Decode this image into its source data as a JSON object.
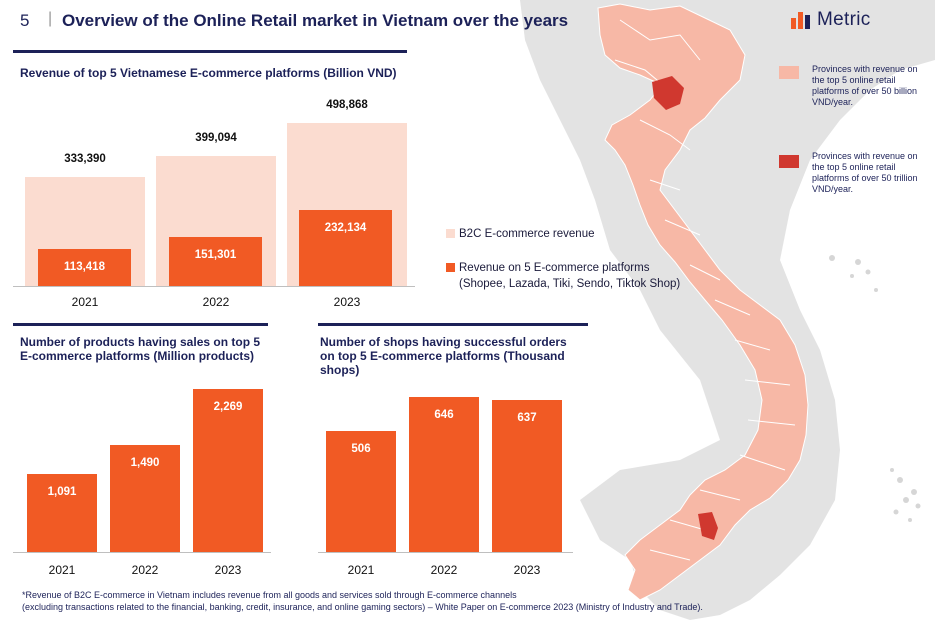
{
  "header": {
    "page_number": "5",
    "separator": "|",
    "title": "Overview of the Online Retail market in Vietnam over the years"
  },
  "logo": {
    "text": "Metric"
  },
  "colors": {
    "navy": "#1c2158",
    "orange": "#f15a24",
    "peach": "#fbdcd0",
    "red": "#d0382f"
  },
  "chart_data": [
    {
      "type": "bar",
      "title": "Revenue of top 5 Vietnamese E-commerce platforms (Billion VND)",
      "categories": [
        "2021",
        "2022",
        "2023"
      ],
      "series": [
        {
          "name": "B2C E-commerce revenue",
          "values": [
            333390,
            399094,
            498868
          ],
          "labels": [
            "333,390",
            "399,094",
            "498,868"
          ]
        },
        {
          "name": "Revenue on 5 E-commerce platforms",
          "values": [
            113418,
            151301,
            232134
          ],
          "labels": [
            "113,418",
            "151,301",
            "232,134"
          ]
        }
      ],
      "legend": [
        "B2C E-commerce revenue",
        "Revenue on 5 E-commerce platforms",
        "(Shopee, Lazada, Tiki, Sendo, Tiktok Shop)"
      ],
      "ylim": [
        0,
        520000
      ]
    },
    {
      "type": "bar",
      "title": "Number of products having sales on top 5 E-commerce platforms (Million products)",
      "categories": [
        "2021",
        "2022",
        "2023"
      ],
      "values": [
        1091,
        1490,
        2269
      ],
      "labels": [
        "1,091",
        "1,490",
        "2,269"
      ],
      "ylim": [
        0,
        2300
      ]
    },
    {
      "type": "bar",
      "title": "Number of shops having successful orders on top 5 E-commerce platforms (Thousand shops)",
      "categories": [
        "2021",
        "2022",
        "2023"
      ],
      "values": [
        506,
        646,
        637
      ],
      "labels": [
        "506",
        "646",
        "637"
      ],
      "ylim": [
        0,
        660
      ]
    }
  ],
  "map_legend": [
    {
      "text": "Provinces with revenue on the top 5 online retail platforms of over 50 billion VND/year."
    },
    {
      "text": "Provinces with revenue on the top 5 online retail platforms of over 50 trillion VND/year."
    }
  ],
  "footnote": {
    "line1": "*Revenue of B2C E-commerce in Vietnam includes revenue from all goods and services sold through E-commerce channels",
    "line2": "(excluding transactions related to the financial, banking, credit, insurance, and online gaming sectors) – White Paper on E-commerce 2023 (Ministry of Industry and Trade)."
  }
}
